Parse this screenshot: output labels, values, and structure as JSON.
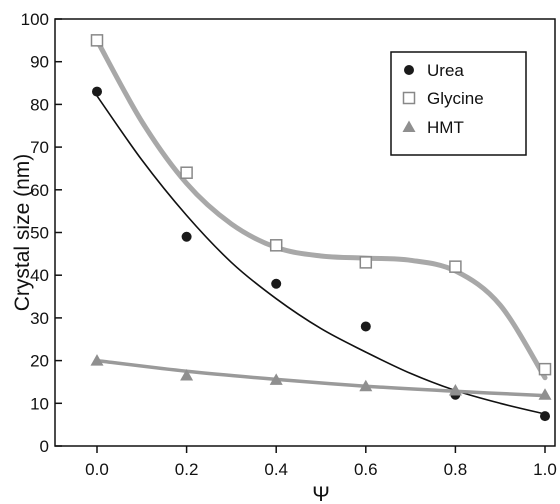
{
  "chart_data": {
    "type": "scatter",
    "title": "",
    "xlabel": "Ψ",
    "ylabel": "Crystal size (nm)",
    "xlim": [
      0.0,
      1.0
    ],
    "ylim": [
      0,
      100
    ],
    "x_ticks": [
      "0.0",
      "0.2",
      "0.4",
      "0.6",
      "0.8",
      "1.0"
    ],
    "y_ticks": [
      "0",
      "10",
      "20",
      "30",
      "40",
      "50",
      "60",
      "70",
      "80",
      "90",
      "100"
    ],
    "grid": false,
    "legend_position": "top-right",
    "series": [
      {
        "name": "Urea",
        "marker": "filled-circle",
        "color": "#1a1a1a",
        "x": [
          0.0,
          0.2,
          0.4,
          0.6,
          0.8,
          1.0
        ],
        "y": [
          83,
          49,
          38,
          28,
          12,
          7
        ],
        "fit": {
          "color": "#111111",
          "x": [
            0.0,
            0.1,
            0.2,
            0.3,
            0.4,
            0.5,
            0.6,
            0.7,
            0.8,
            0.9,
            1.0
          ],
          "y": [
            82,
            67,
            54,
            43,
            34.5,
            27.5,
            22,
            17,
            13,
            10,
            7.5
          ]
        }
      },
      {
        "name": "Glycine",
        "marker": "open-square",
        "color": "#888888",
        "x": [
          0.0,
          0.2,
          0.4,
          0.6,
          0.8,
          1.0
        ],
        "y": [
          95,
          64,
          47,
          43,
          42,
          18
        ],
        "fit": {
          "color": "#a8a8a8",
          "x": [
            0.0,
            0.1,
            0.2,
            0.3,
            0.4,
            0.5,
            0.6,
            0.7,
            0.8,
            0.9,
            1.0
          ],
          "y": [
            95,
            76,
            61.5,
            52,
            46.5,
            44.5,
            44,
            43.5,
            41,
            33,
            16
          ]
        }
      },
      {
        "name": "HMT",
        "marker": "filled-triangle",
        "color": "#8f8f8f",
        "x": [
          0.0,
          0.2,
          0.4,
          0.6,
          0.8,
          1.0
        ],
        "y": [
          20,
          16.5,
          15.5,
          14,
          13,
          12
        ],
        "fit": {
          "color": "#9a9a9a",
          "x": [
            0.0,
            0.2,
            0.4,
            0.6,
            0.8,
            1.0
          ],
          "y": [
            20,
            17.5,
            15.6,
            14,
            12.8,
            11.8
          ]
        }
      }
    ]
  }
}
